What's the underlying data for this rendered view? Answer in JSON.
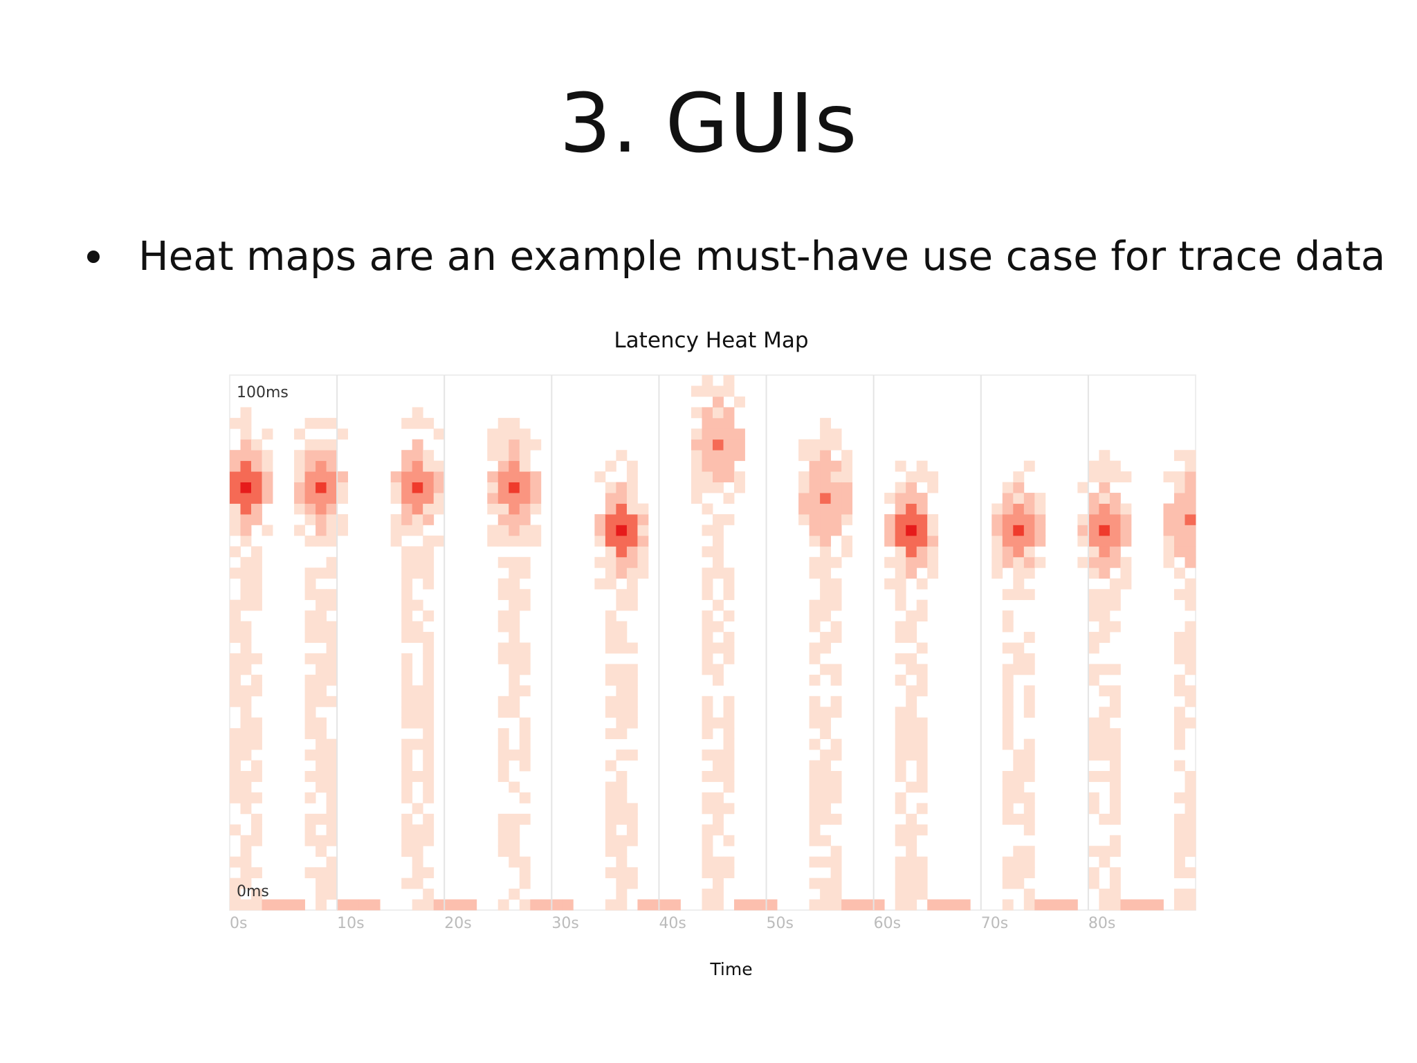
{
  "slide": {
    "title": "3. GUIs",
    "bullet": "Heat maps are an example must-have use case for trace data"
  },
  "chart_data": {
    "type": "heatmap",
    "title": "Latency Heat Map",
    "xlabel": "Time",
    "ylabel": "",
    "x_range_seconds": [
      0,
      90
    ],
    "y_range_ms": [
      0,
      100
    ],
    "x_ticks": [
      "0s",
      "10s",
      "20s",
      "30s",
      "40s",
      "50s",
      "60s",
      "70s",
      "80s"
    ],
    "y_top_label": "100ms",
    "y_bottom_label": "0ms",
    "bin_width_seconds": 1,
    "bin_height_ms": 2,
    "grid": true,
    "colorscale": [
      "#fdf1e6",
      "#fde0d2",
      "#fcbfae",
      "#fa9580",
      "#f56a55",
      "#ef3b2c",
      "#e61b1b"
    ],
    "intensity_levels": 7,
    "peaks": [
      {
        "center_s": 1,
        "latency_ms": 78,
        "intensity": 6
      },
      {
        "center_s": 8,
        "latency_ms": 78,
        "intensity": 5
      },
      {
        "center_s": 17,
        "latency_ms": 78,
        "intensity": 5
      },
      {
        "center_s": 26,
        "latency_ms": 78,
        "intensity": 5
      },
      {
        "center_s": 36,
        "latency_ms": 70,
        "intensity": 6
      },
      {
        "center_s": 45,
        "latency_ms": 86,
        "intensity": 4
      },
      {
        "center_s": 55,
        "latency_ms": 76,
        "intensity": 4
      },
      {
        "center_s": 63,
        "latency_ms": 70,
        "intensity": 6
      },
      {
        "center_s": 73,
        "latency_ms": 70,
        "intensity": 5
      },
      {
        "center_s": 81,
        "latency_ms": 70,
        "intensity": 5
      },
      {
        "center_s": 89,
        "latency_ms": 72,
        "intensity": 4
      }
    ]
  }
}
